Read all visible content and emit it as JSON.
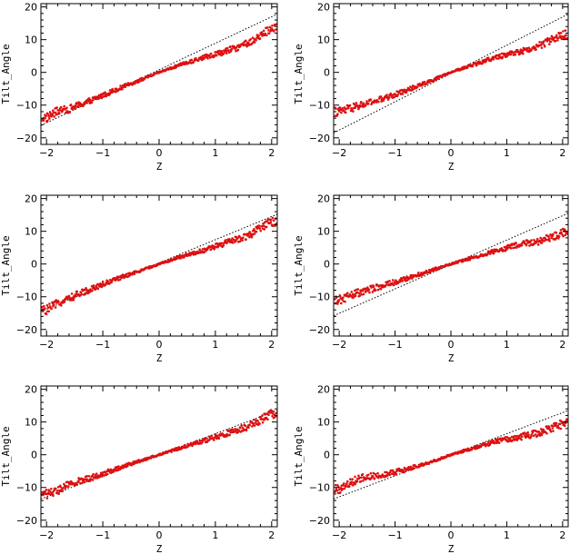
{
  "chart_data": [
    {
      "type": "scatter",
      "xlabel": "Z",
      "ylabel": "Tilt_Angle",
      "xlim": [
        -2.1,
        2.1
      ],
      "ylim": [
        -22,
        21
      ],
      "xticks": [
        -2,
        -1,
        0,
        1,
        2
      ],
      "yticks": [
        -20,
        -10,
        0,
        10,
        20
      ],
      "grid": false,
      "fit_line": {
        "style": "dotted",
        "color": "#000000",
        "x": [
          -2.1,
          2.1
        ],
        "y": [
          -16.2,
          17.8
        ]
      },
      "series": [
        {
          "color": "#dd1111",
          "points": [
            [
              -2.0,
              -13.8
            ],
            [
              -1.8,
              -11.8
            ],
            [
              -1.6,
              -11.2
            ],
            [
              -1.2,
              -8.5
            ],
            [
              -0.8,
              -5.5
            ],
            [
              -0.4,
              -2.8
            ],
            [
              0.0,
              0.0
            ],
            [
              0.4,
              2.4
            ],
            [
              0.8,
              4.6
            ],
            [
              1.2,
              6.5
            ],
            [
              1.6,
              9.0
            ],
            [
              2.0,
              13.5
            ]
          ]
        }
      ]
    },
    {
      "type": "scatter",
      "xlabel": "Z",
      "ylabel": "Tilt_Angle",
      "xlim": [
        -2.1,
        2.1
      ],
      "ylim": [
        -22,
        21
      ],
      "xticks": [
        -2,
        -1,
        0,
        1,
        2
      ],
      "yticks": [
        -20,
        -10,
        0,
        10,
        20
      ],
      "grid": false,
      "fit_line": {
        "style": "dotted",
        "color": "#000000",
        "x": [
          -2.1,
          2.1
        ],
        "y": [
          -18.5,
          17.8
        ]
      },
      "series": [
        {
          "color": "#dd1111",
          "points": [
            [
              -2.0,
              -12.0
            ],
            [
              -1.8,
              -11.0
            ],
            [
              -1.6,
              -10.0
            ],
            [
              -1.2,
              -8.0
            ],
            [
              -0.8,
              -5.5
            ],
            [
              -0.4,
              -2.8
            ],
            [
              0.0,
              0.0
            ],
            [
              0.4,
              2.3
            ],
            [
              0.8,
              4.6
            ],
            [
              1.2,
              6.2
            ],
            [
              1.6,
              8.2
            ],
            [
              2.0,
              11.5
            ]
          ]
        }
      ]
    },
    {
      "type": "scatter",
      "xlabel": "Z",
      "ylabel": "Tilt_Angle",
      "xlim": [
        -2.1,
        2.1
      ],
      "ylim": [
        -22,
        21
      ],
      "xticks": [
        -2,
        -1,
        0,
        1,
        2
      ],
      "yticks": [
        -20,
        -10,
        0,
        10,
        20
      ],
      "grid": false,
      "fit_line": {
        "style": "dotted",
        "color": "#000000",
        "x": [
          -2.1,
          2.1
        ],
        "y": [
          -14.5,
          15.2
        ]
      },
      "series": [
        {
          "color": "#dd1111",
          "points": [
            [
              -2.0,
              -14.0
            ],
            [
              -1.8,
              -12.0
            ],
            [
              -1.6,
              -10.5
            ],
            [
              -1.2,
              -7.5
            ],
            [
              -0.8,
              -4.8
            ],
            [
              -0.4,
              -2.5
            ],
            [
              0.0,
              0.0
            ],
            [
              0.4,
              2.3
            ],
            [
              0.8,
              4.2
            ],
            [
              1.2,
              6.5
            ],
            [
              1.6,
              8.8
            ],
            [
              2.0,
              13.0
            ]
          ]
        }
      ]
    },
    {
      "type": "scatter",
      "xlabel": "Z",
      "ylabel": "Tilt_Angle",
      "xlim": [
        -2.1,
        2.1
      ],
      "ylim": [
        -22,
        21
      ],
      "xticks": [
        -2,
        -1,
        0,
        1,
        2
      ],
      "yticks": [
        -20,
        -10,
        0,
        10,
        20
      ],
      "grid": false,
      "fit_line": {
        "style": "dotted",
        "color": "#000000",
        "x": [
          -2.1,
          2.1
        ],
        "y": [
          -15.8,
          15.5
        ]
      },
      "series": [
        {
          "color": "#dd1111",
          "points": [
            [
              -2.0,
              -11.0
            ],
            [
              -1.8,
              -9.5
            ],
            [
              -1.6,
              -8.5
            ],
            [
              -1.2,
              -6.5
            ],
            [
              -0.8,
              -4.5
            ],
            [
              -0.4,
              -2.2
            ],
            [
              0.0,
              0.0
            ],
            [
              0.4,
              2.0
            ],
            [
              0.8,
              4.0
            ],
            [
              1.2,
              5.8
            ],
            [
              1.6,
              7.0
            ],
            [
              2.0,
              9.5
            ]
          ]
        }
      ]
    },
    {
      "type": "scatter",
      "xlabel": "Z",
      "ylabel": "Tilt_Angle",
      "xlim": [
        -2.1,
        2.1
      ],
      "ylim": [
        -22,
        21
      ],
      "xticks": [
        -2,
        -1,
        0,
        1,
        2
      ],
      "yticks": [
        -20,
        -10,
        0,
        10,
        20
      ],
      "grid": false,
      "fit_line": {
        "style": "dotted",
        "color": "#000000",
        "x": [
          -2.1,
          2.1
        ],
        "y": [
          -13.5,
          13.5
        ]
      },
      "series": [
        {
          "color": "#dd1111",
          "points": [
            [
              -2.0,
              -12.0
            ],
            [
              -1.8,
              -11.0
            ],
            [
              -1.6,
              -9.0
            ],
            [
              -1.2,
              -7.0
            ],
            [
              -0.8,
              -4.5
            ],
            [
              -0.4,
              -2.2
            ],
            [
              0.0,
              0.0
            ],
            [
              0.4,
              2.2
            ],
            [
              0.8,
              4.3
            ],
            [
              1.2,
              6.5
            ],
            [
              1.6,
              8.8
            ],
            [
              2.0,
              12.5
            ]
          ]
        }
      ]
    },
    {
      "type": "scatter",
      "xlabel": "Z",
      "ylabel": "Tilt_Angle",
      "xlim": [
        -2.1,
        2.1
      ],
      "ylim": [
        -22,
        21
      ],
      "xticks": [
        -2,
        -1,
        0,
        1,
        2
      ],
      "yticks": [
        -20,
        -10,
        0,
        10,
        20
      ],
      "grid": false,
      "fit_line": {
        "style": "dotted",
        "color": "#000000",
        "x": [
          -2.1,
          2.1
        ],
        "y": [
          -13.5,
          13.5
        ]
      },
      "series": [
        {
          "color": "#dd1111",
          "points": [
            [
              -2.0,
              -10.5
            ],
            [
              -1.8,
              -8.5
            ],
            [
              -1.6,
              -7.0
            ],
            [
              -1.2,
              -6.0
            ],
            [
              -0.8,
              -4.5
            ],
            [
              -0.4,
              -2.5
            ],
            [
              0.0,
              0.0
            ],
            [
              0.4,
              2.0
            ],
            [
              0.8,
              4.0
            ],
            [
              1.2,
              5.3
            ],
            [
              1.6,
              6.8
            ],
            [
              2.0,
              9.5
            ]
          ]
        }
      ]
    }
  ]
}
